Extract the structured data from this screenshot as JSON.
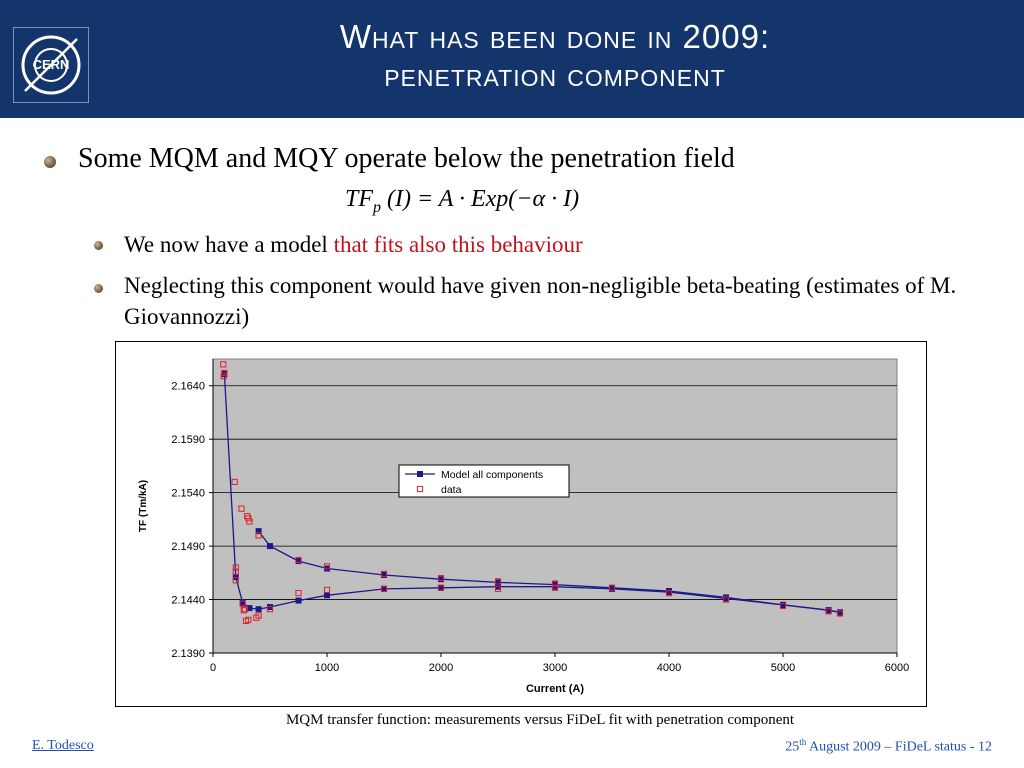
{
  "header": {
    "title_line1": "What has been done in 2009:",
    "title_line2": "penetration component",
    "logo_text": "CERN"
  },
  "bullets": {
    "main": "Some MQM and MQY operate below the penetration field",
    "formula": {
      "lhs": "TF",
      "sub": "p",
      "rhs": "(I) = A · Exp(−α · I)"
    },
    "sub1_plain": "We now have a model ",
    "sub1_red": "that fits also this behaviour",
    "sub2": "Neglecting this component would have given non-negligible beta-beating (estimates of M. Giovannozzi)"
  },
  "caption": "MQM transfer function: measurements versus FiDeL fit with penetration component",
  "footer": {
    "author": "E. Todesco",
    "date_day": "25",
    "date_suffix": "th",
    "date_rest": " August 2009 – FiDeL status - 12"
  },
  "colors": {
    "header_bg": "#14356b",
    "plot_bg": "#c0c0c0",
    "model_line": "#1a1a8c",
    "data_marker": "#e0202a",
    "accent_red": "#c0121d"
  },
  "chart_data": {
    "type": "scatter",
    "xlabel": "Current (A)",
    "ylabel": "TF (Tm/kA)",
    "xlim": [
      0,
      6000
    ],
    "ylim": [
      2.139,
      2.1665
    ],
    "xticks": [
      "0",
      "1000",
      "2000",
      "3000",
      "4000",
      "5000",
      "6000"
    ],
    "yticks": [
      "2.1390",
      "2.1440",
      "2.1490",
      "2.1540",
      "2.1590",
      "2.1640"
    ],
    "grid": "horizontal",
    "legend_position": "center-right",
    "series": [
      {
        "name": "Model all components",
        "style": "line-square",
        "branches": [
          {
            "x": [
              100,
              200,
              260,
              320,
              400,
              500,
              750,
              1000,
              1500,
              2000,
              2500,
              3000,
              3500,
              4000,
              4500,
              5000,
              5400,
              5500
            ],
            "y": [
              2.1651,
              2.1461,
              2.1437,
              2.1432,
              2.1431,
              2.1433,
              2.1439,
              2.1444,
              2.145,
              2.1451,
              2.1452,
              2.1452,
              2.145,
              2.1447,
              2.1441,
              2.1435,
              2.143,
              2.1428
            ]
          },
          {
            "x": [
              400,
              500,
              750,
              1000,
              1500,
              2000,
              2500,
              3000,
              3500,
              4000,
              4500,
              5000,
              5400,
              5500
            ],
            "y": [
              2.1504,
              2.149,
              2.1476,
              2.1469,
              2.1463,
              2.1459,
              2.1456,
              2.1454,
              2.1451,
              2.1448,
              2.1442,
              2.1435,
              2.143,
              2.1428
            ]
          }
        ]
      },
      {
        "name": "data",
        "style": "open-square",
        "x": [
          90,
          95,
          100,
          190,
          200,
          200,
          250,
          260,
          280,
          300,
          310,
          320,
          380,
          400,
          750,
          750,
          1000,
          1000,
          1500,
          1500,
          2000,
          2000,
          2500,
          2500,
          3000,
          3000,
          3500,
          4000,
          4500,
          5000,
          5400,
          5500,
          200,
          270,
          290,
          310,
          400,
          500
        ],
        "y": [
          2.166,
          2.1649,
          2.1652,
          2.155,
          2.147,
          2.1466,
          2.1525,
          2.1436,
          2.1431,
          2.1518,
          2.1516,
          2.1513,
          2.1423,
          2.15,
          2.1477,
          2.1446,
          2.1471,
          2.1449,
          2.1464,
          2.145,
          2.146,
          2.1451,
          2.1457,
          2.145,
          2.1455,
          2.1451,
          2.1451,
          2.1446,
          2.144,
          2.1434,
          2.1429,
          2.1427,
          2.1458,
          2.143,
          2.142,
          2.1421,
          2.1425,
          2.1431
        ]
      }
    ]
  }
}
